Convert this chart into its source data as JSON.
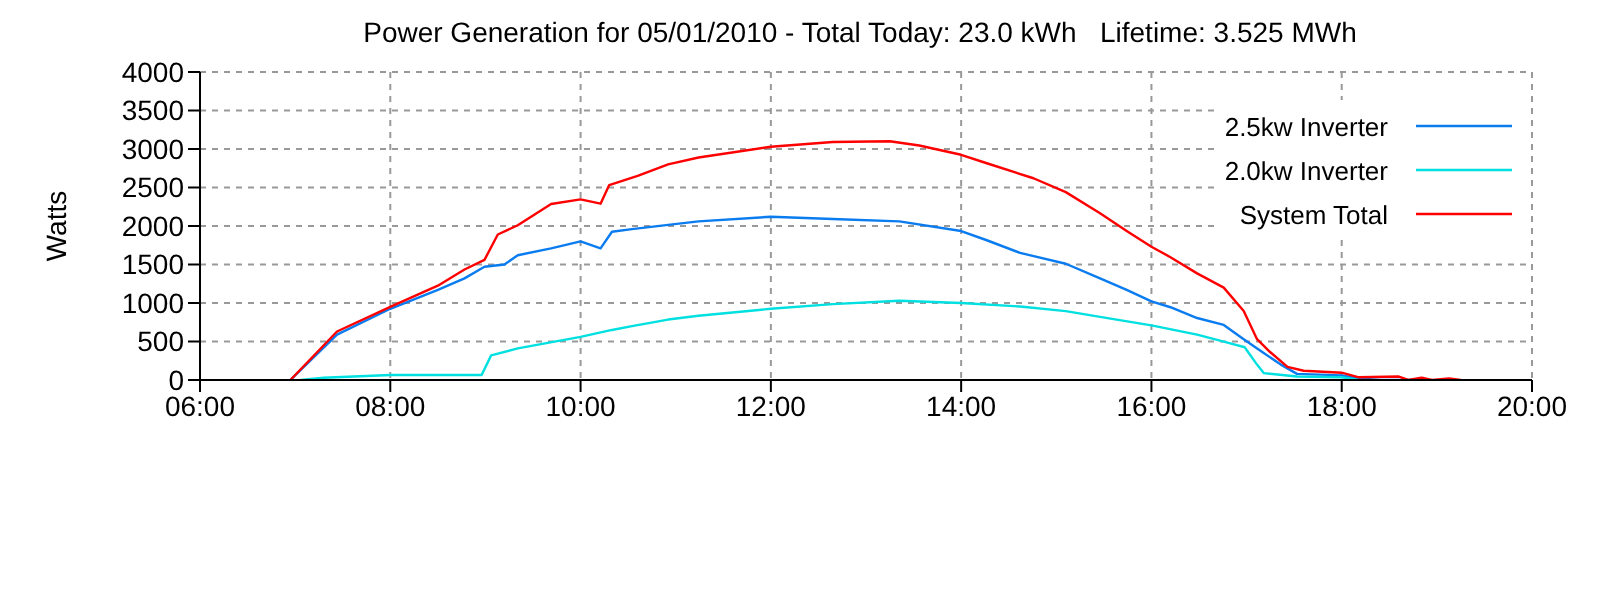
{
  "chart_data": {
    "type": "line",
    "title": "Power Generation for 05/01/2010 - Total Today: 23.0 kWh   Lifetime: 3.525 MWh",
    "ylabel": "Watts",
    "xlim": [
      6,
      20
    ],
    "xticks": [
      {
        "value": 6,
        "label": "06:00"
      },
      {
        "value": 8,
        "label": "08:00"
      },
      {
        "value": 10,
        "label": "10:00"
      },
      {
        "value": 12,
        "label": "12:00"
      },
      {
        "value": 14,
        "label": "14:00"
      },
      {
        "value": 16,
        "label": "16:00"
      },
      {
        "value": 18,
        "label": "18:00"
      },
      {
        "value": 20,
        "label": "20:00"
      }
    ],
    "ylim": [
      0,
      4000
    ],
    "yticks": [
      0,
      500,
      1000,
      1500,
      2000,
      2500,
      3000,
      3500,
      4000
    ],
    "grid": true,
    "legend": "top right",
    "marker": "none",
    "line_style": "solid",
    "series": [
      {
        "name": "2.5kw Inverter",
        "color": "#0a7cf0",
        "x": [
          6.95,
          7.44,
          8.0,
          8.5,
          8.78,
          8.99,
          9.2,
          9.34,
          9.69,
          10.0,
          10.21,
          10.33,
          10.54,
          10.92,
          11.24,
          12.0,
          12.65,
          13.35,
          14.0,
          14.27,
          14.62,
          15.1,
          15.46,
          15.74,
          16.0,
          16.2,
          16.48,
          16.76,
          16.97,
          17.18,
          17.36,
          17.53,
          18.0,
          18.18,
          18.4,
          18.8
        ],
        "values": [
          0,
          590,
          925,
          1170,
          1320,
          1470,
          1500,
          1620,
          1710,
          1800,
          1710,
          1925,
          1960,
          2015,
          2060,
          2120,
          2090,
          2060,
          1935,
          1815,
          1650,
          1510,
          1320,
          1170,
          1020,
          945,
          805,
          715,
          530,
          350,
          200,
          80,
          60,
          20,
          0,
          0
        ]
      },
      {
        "name": "2.0kw Inverter",
        "color": "#00e0e0",
        "x": [
          7.06,
          7.3,
          8.0,
          8.96,
          9.06,
          9.34,
          10.0,
          10.33,
          10.54,
          10.92,
          11.24,
          12.0,
          12.65,
          13.35,
          14.0,
          14.62,
          15.1,
          15.46,
          16.0,
          16.48,
          16.8,
          16.98,
          17.11,
          17.18,
          17.53,
          18.0,
          18.18
        ],
        "values": [
          0,
          30,
          65,
          65,
          320,
          410,
          560,
          650,
          700,
          785,
          835,
          925,
          985,
          1030,
          1000,
          955,
          895,
          820,
          710,
          590,
          485,
          425,
          200,
          90,
          45,
          35,
          0
        ]
      },
      {
        "name": "System Total",
        "color": "#ff0000",
        "x": [
          6.95,
          7.44,
          8.0,
          8.5,
          8.78,
          8.99,
          9.13,
          9.34,
          9.69,
          10.0,
          10.21,
          10.3,
          10.6,
          10.92,
          11.24,
          12.0,
          12.65,
          13.25,
          13.56,
          14.0,
          14.27,
          14.76,
          15.1,
          15.46,
          15.74,
          16.0,
          16.2,
          16.48,
          16.76,
          16.97,
          17.11,
          17.25,
          17.43,
          17.6,
          18.0,
          18.18,
          18.6,
          18.7,
          18.84,
          18.95,
          19.13,
          19.25
        ],
        "values": [
          0,
          630,
          950,
          1225,
          1435,
          1560,
          1890,
          2010,
          2285,
          2345,
          2290,
          2530,
          2650,
          2800,
          2890,
          3030,
          3090,
          3100,
          3045,
          2925,
          2815,
          2620,
          2440,
          2165,
          1935,
          1730,
          1595,
          1385,
          1200,
          895,
          530,
          360,
          170,
          120,
          95,
          35,
          45,
          0,
          30,
          0,
          20,
          0
        ]
      }
    ]
  }
}
